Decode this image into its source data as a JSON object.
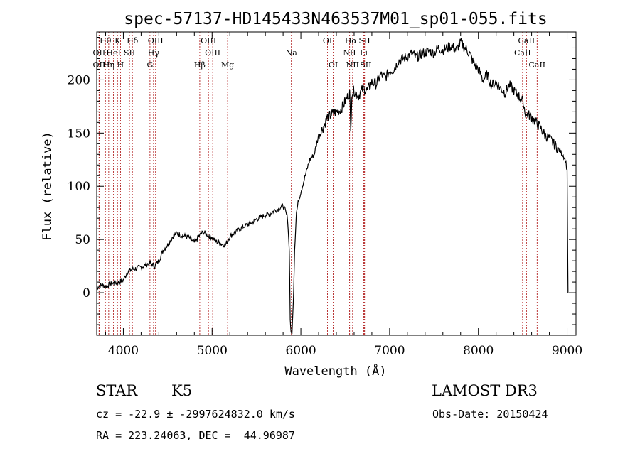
{
  "chart_data": {
    "type": "line",
    "title": "spec-57137-HD145433N463537M01_sp01-055.fits",
    "xlabel": "Wavelength (Å)",
    "ylabel": "Flux (relative)",
    "xlim": [
      3700,
      9100
    ],
    "ylim": [
      -40,
      245
    ],
    "xticks": [
      4000,
      5000,
      6000,
      7000,
      8000,
      9000
    ],
    "yticks": [
      0,
      50,
      100,
      150,
      200
    ],
    "grid": false,
    "line_color": "#000000",
    "marker_color": "#b22222",
    "series": [
      {
        "x": [
          3700,
          3750,
          3800,
          3850,
          3900,
          3950,
          4000,
          4050,
          4100,
          4150,
          4200,
          4250,
          4300,
          4350,
          4400,
          4450,
          4500,
          4550,
          4600,
          4650,
          4700,
          4750,
          4800,
          4850,
          4900,
          4950,
          5000,
          5050,
          5100,
          5150,
          5200,
          5250,
          5300,
          5350,
          5400,
          5450,
          5500,
          5550,
          5600,
          5650,
          5700,
          5750,
          5800,
          5820,
          5850,
          5870,
          5880,
          5890,
          5900,
          5910,
          5920,
          5930,
          5950,
          5970,
          6000,
          6050,
          6100,
          6150,
          6200,
          6250,
          6300,
          6350,
          6400,
          6450,
          6500,
          6550,
          6562,
          6575,
          6600,
          6650,
          6700,
          6750,
          6800,
          6850,
          6900,
          6950,
          7000,
          7050,
          7100,
          7150,
          7200,
          7250,
          7300,
          7350,
          7400,
          7450,
          7500,
          7550,
          7600,
          7650,
          7700,
          7750,
          7800,
          7850,
          7900,
          7950,
          8000,
          8050,
          8100,
          8150,
          8200,
          8250,
          8300,
          8350,
          8400,
          8450,
          8500,
          8542,
          8550,
          8600,
          8650,
          8700,
          8750,
          8800,
          8850,
          8900,
          8950,
          8980,
          9000,
          9010
        ],
        "y": [
          5,
          7,
          6,
          8,
          9,
          10,
          12,
          20,
          22,
          23,
          24,
          26,
          28,
          25,
          30,
          40,
          45,
          52,
          56,
          54,
          53,
          51,
          47,
          53,
          57,
          54,
          52,
          48,
          46,
          45,
          53,
          56,
          59,
          62,
          64,
          66,
          69,
          71,
          73,
          74,
          77,
          79,
          82,
          78,
          70,
          40,
          -25,
          -38,
          -38,
          -20,
          5,
          40,
          75,
          85,
          95,
          110,
          125,
          130,
          148,
          155,
          165,
          168,
          170,
          172,
          180,
          188,
          150,
          188,
          190,
          185,
          192,
          190,
          198,
          196,
          205,
          202,
          208,
          210,
          218,
          220,
          222,
          225,
          221,
          224,
          226,
          227,
          225,
          230,
          228,
          230,
          232,
          228,
          235,
          230,
          225,
          215,
          210,
          200,
          205,
          195,
          198,
          192,
          188,
          195,
          190,
          185,
          180,
          165,
          168,
          165,
          160,
          155,
          148,
          145,
          140,
          135,
          130,
          125,
          115,
          0
        ]
      }
    ],
    "spectral_lines": [
      {
        "label": "Hθ",
        "wavelength": 3798,
        "row": 1
      },
      {
        "label": "K",
        "wavelength": 3934,
        "row": 1
      },
      {
        "label": "Hδ",
        "wavelength": 4102,
        "row": 1
      },
      {
        "label": "OIII",
        "wavelength": 4363,
        "row": 1
      },
      {
        "label": "OIII",
        "wavelength": 4959,
        "row": 1
      },
      {
        "label": "OI",
        "wavelength": 6300,
        "row": 1
      },
      {
        "label": "Hα",
        "wavelength": 6563,
        "row": 1
      },
      {
        "label": "SII",
        "wavelength": 6717,
        "row": 1
      },
      {
        "label": "CaII",
        "wavelength": 8542,
        "row": 1
      },
      {
        "label": "OII",
        "wavelength": 3727,
        "row": 2
      },
      {
        "label": "HeI",
        "wavelength": 3889,
        "row": 2
      },
      {
        "label": "SII",
        "wavelength": 4069,
        "row": 2
      },
      {
        "label": "Hγ",
        "wavelength": 4340,
        "row": 2
      },
      {
        "label": "OIII",
        "wavelength": 5007,
        "row": 2
      },
      {
        "label": "Na",
        "wavelength": 5893,
        "row": 2
      },
      {
        "label": "NII",
        "wavelength": 6548,
        "row": 2
      },
      {
        "label": "Li",
        "wavelength": 6708,
        "row": 2
      },
      {
        "label": "CaII",
        "wavelength": 8498,
        "row": 2
      },
      {
        "label": "OII",
        "wavelength": 3727,
        "row": 3
      },
      {
        "label": "Hη",
        "wavelength": 3835,
        "row": 3
      },
      {
        "label": "H",
        "wavelength": 3968,
        "row": 3
      },
      {
        "label": "G",
        "wavelength": 4300,
        "row": 3
      },
      {
        "label": "Hβ",
        "wavelength": 4861,
        "row": 3
      },
      {
        "label": "Mg",
        "wavelength": 5175,
        "row": 3
      },
      {
        "label": "OI",
        "wavelength": 6364,
        "row": 3
      },
      {
        "label": "NII",
        "wavelength": 6583,
        "row": 3
      },
      {
        "label": "SII",
        "wavelength": 6731,
        "row": 3
      },
      {
        "label": "CaII",
        "wavelength": 8662,
        "row": 3
      }
    ]
  },
  "info": {
    "object_class": "STAR",
    "subclass": "K5",
    "survey": "LAMOST DR3",
    "redshift_line": "cz = -22.9 ± -2997624832.0 km/s",
    "obs_date": "Obs-Date: 20150424",
    "coords": "RA = 223.24063, DEC =  44.96987"
  }
}
